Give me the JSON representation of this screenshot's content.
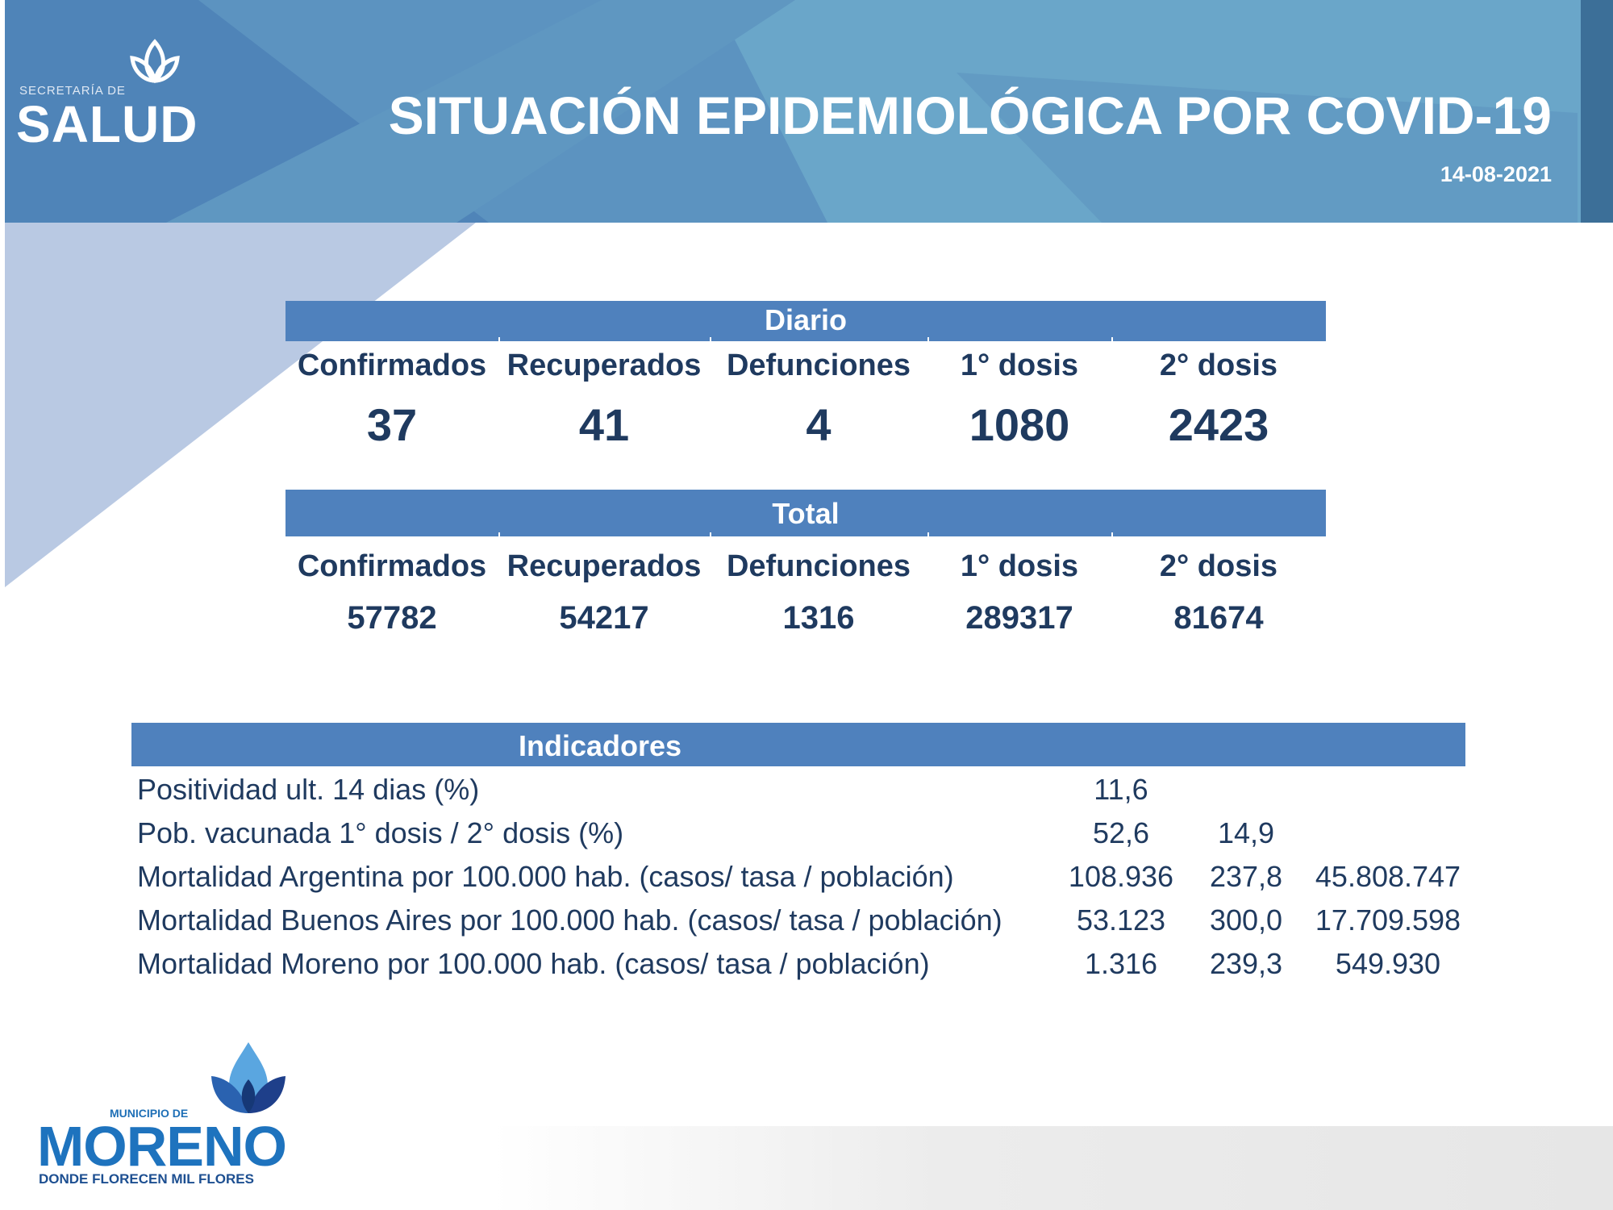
{
  "header": {
    "logo_small": "SECRETARÍA DE",
    "logo_big": "SALUD",
    "title": "SITUACIÓN EPIDEMIOLÓGICA POR COVID-19",
    "date": "14-08-2021"
  },
  "daily": {
    "title": "Diario",
    "columns": [
      "Confirmados",
      "Recuperados",
      "Defunciones",
      "1° dosis",
      "2° dosis"
    ],
    "values": [
      "37",
      "41",
      "4",
      "1080",
      "2423"
    ]
  },
  "total": {
    "title": "Total",
    "columns": [
      "Confirmados",
      "Recuperados",
      "Defunciones",
      "1° dosis",
      "2° dosis"
    ],
    "values": [
      "57782",
      "54217",
      "1316",
      "289317",
      "81674"
    ]
  },
  "indicators": {
    "title": "Indicadores",
    "rows": [
      {
        "label": "Positividad ult. 14 dias (%)",
        "v1": "11,6",
        "v2": "",
        "v3": ""
      },
      {
        "label": "Pob. vacunada 1° dosis / 2° dosis (%)",
        "v1": "52,6",
        "v2": "14,9",
        "v3": ""
      },
      {
        "label": "Mortalidad Argentina por 100.000 hab. (casos/ tasa / población)",
        "v1": "108.936",
        "v2": "237,8",
        "v3": "45.808.747"
      },
      {
        "label": "Mortalidad Buenos Aires por 100.000 hab. (casos/ tasa / población)",
        "v1": "53.123",
        "v2": "300,0",
        "v3": "17.709.598"
      },
      {
        "label": "Mortalidad Moreno por 100.000 hab. (casos/ tasa / población)",
        "v1": "1.316",
        "v2": "239,3",
        "v3": "549.930"
      }
    ]
  },
  "footer": {
    "logo_small": "MUNICIPIO DE",
    "logo_big": "MORENO",
    "tagline": "DONDE FLORECEN MIL FLORES"
  },
  "colors": {
    "header_blue": "#4a7fb0",
    "header_light": "#6aa5c8",
    "table_bar": "#4f81bd",
    "text_dark": "#1f3a5f",
    "triangle": "#b7c8e2"
  }
}
